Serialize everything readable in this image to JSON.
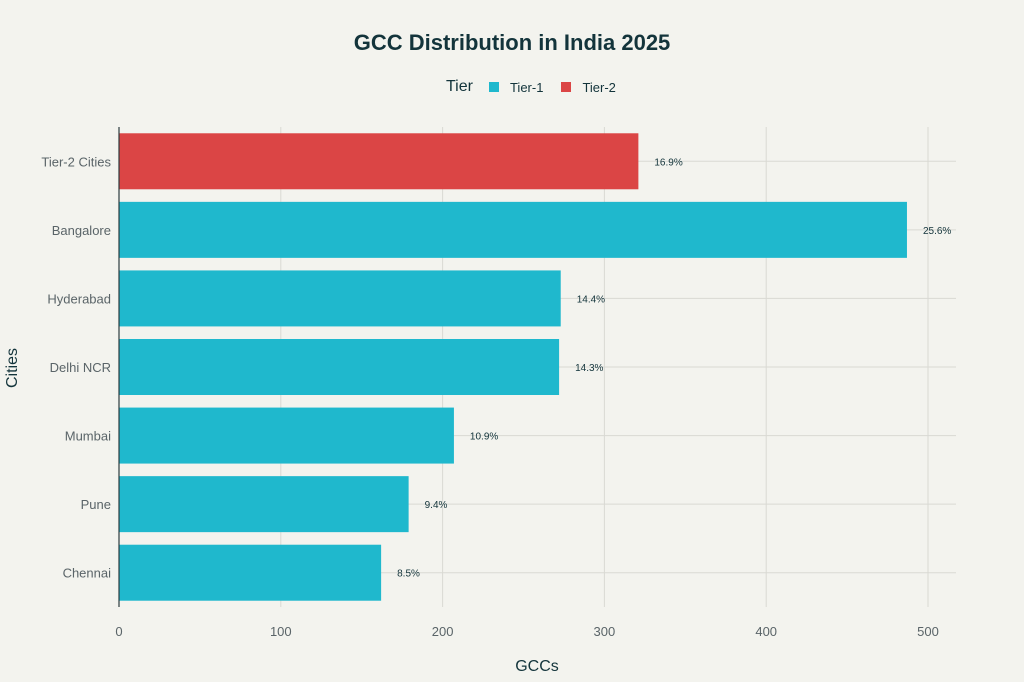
{
  "chart_data": {
    "type": "bar",
    "orientation": "horizontal",
    "title": "GCC Distribution in India 2025",
    "xlabel": "GCCs",
    "ylabel": "Cities",
    "xlim": [
      0,
      520
    ],
    "xticks": [
      0,
      100,
      200,
      300,
      400,
      500
    ],
    "grid": true,
    "legend": {
      "title": "Tier",
      "placement": "top-center",
      "entries": [
        {
          "name": "Tier-1",
          "color": "#1fb8cd"
        },
        {
          "name": "Tier-2",
          "color": "#db4545"
        }
      ]
    },
    "categories": [
      "Tier-2 Cities",
      "Bangalore",
      "Hyderabad",
      "Delhi NCR",
      "Mumbai",
      "Pune",
      "Chennai"
    ],
    "values": [
      321,
      487,
      273,
      272,
      207,
      179,
      162
    ],
    "tiers": [
      "Tier-2",
      "Tier-1",
      "Tier-1",
      "Tier-1",
      "Tier-1",
      "Tier-1",
      "Tier-1"
    ],
    "labels": [
      "16.9%",
      "25.6%",
      "14.4%",
      "14.3%",
      "10.9%",
      "9.4%",
      "8.5%"
    ]
  }
}
